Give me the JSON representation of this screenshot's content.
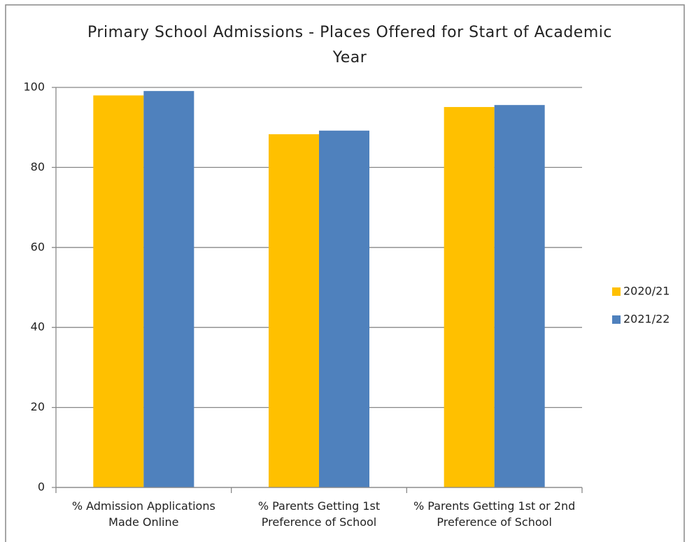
{
  "chart_data": {
    "type": "bar",
    "title": "Primary School Admissions - Places Offered for Start of Academic Year",
    "categories": [
      "% Admission Applications Made Online",
      "% Parents Getting 1st Preference of School",
      "% Parents Getting 1st or 2nd Preference of School"
    ],
    "series": [
      {
        "name": "2020/21",
        "color": "#ffc000",
        "values": [
          98,
          88.3,
          95.1
        ]
      },
      {
        "name": "2021/22",
        "color": "#4f81bd",
        "values": [
          99.1,
          89.2,
          95.6
        ]
      }
    ],
    "ylim": [
      0,
      100
    ],
    "yticks": [
      0,
      20,
      40,
      60,
      80,
      100
    ],
    "grid": true,
    "legend": "right"
  }
}
